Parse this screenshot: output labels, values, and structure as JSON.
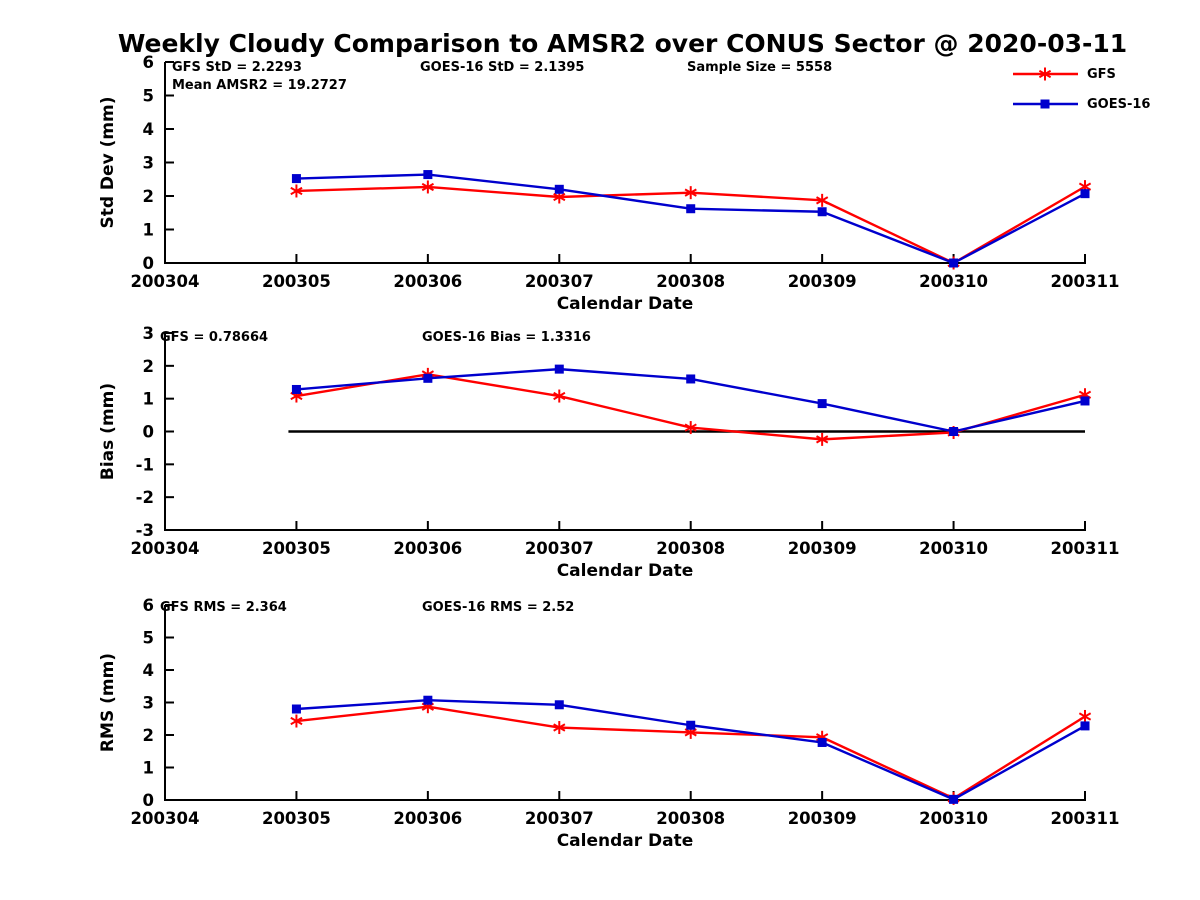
{
  "title": "Weekly Cloudy Comparison to AMSR2 over CONUS Sector @ 2020-03-11",
  "legend": {
    "position": "top-right",
    "entries": [
      {
        "label": "GFS",
        "color": "#ff0000",
        "marker": "asterisk"
      },
      {
        "label": "GOES-16",
        "color": "#0000cd",
        "marker": "square"
      }
    ]
  },
  "chart_data": [
    {
      "name": "std-dev",
      "type": "line",
      "xlabel": "Calendar Date",
      "ylabel": "Std Dev (mm)",
      "ylim": [
        0,
        6
      ],
      "yticks": [
        0,
        1,
        2,
        3,
        4,
        5,
        6
      ],
      "xticklabels": [
        "200304",
        "200305",
        "200306",
        "200307",
        "200308",
        "200309",
        "200310",
        "200311"
      ],
      "x": [
        "200305",
        "200306",
        "200307",
        "200308",
        "200309",
        "200310",
        "200311"
      ],
      "grid": false,
      "annotations": [
        "GFS StD = 2.2293",
        "Mean AMSR2 = 19.2727",
        "GOES-16 StD = 2.1395",
        "Sample Size = 5558"
      ],
      "series": [
        {
          "name": "GFS",
          "color": "#ff0000",
          "marker": "asterisk",
          "values": [
            2.15,
            2.27,
            1.97,
            2.1,
            1.87,
            0.0,
            2.28
          ]
        },
        {
          "name": "GOES-16",
          "color": "#0000cd",
          "marker": "square",
          "values": [
            2.52,
            2.64,
            2.2,
            1.62,
            1.53,
            0.0,
            2.07
          ]
        }
      ]
    },
    {
      "name": "bias",
      "type": "line",
      "xlabel": "Calendar Date",
      "ylabel": "Bias (mm)",
      "ylim": [
        -3,
        3
      ],
      "yticks": [
        -3,
        -2,
        -1,
        0,
        1,
        2,
        3
      ],
      "xticklabels": [
        "200304",
        "200305",
        "200306",
        "200307",
        "200308",
        "200309",
        "200310",
        "200311"
      ],
      "x": [
        "200305",
        "200306",
        "200307",
        "200308",
        "200309",
        "200310",
        "200311"
      ],
      "grid": false,
      "zero_line": true,
      "annotations": [
        "GFS = 0.78664",
        "GOES-16 Bias  = 1.3316"
      ],
      "series": [
        {
          "name": "GFS",
          "color": "#ff0000",
          "marker": "asterisk",
          "values": [
            1.08,
            1.74,
            1.08,
            0.12,
            -0.24,
            -0.03,
            1.12
          ]
        },
        {
          "name": "GOES-16",
          "color": "#0000cd",
          "marker": "square",
          "values": [
            1.28,
            1.62,
            1.9,
            1.6,
            0.85,
            0.0,
            0.93
          ]
        }
      ]
    },
    {
      "name": "rms",
      "type": "line",
      "xlabel": "Calendar Date",
      "ylabel": "RMS (mm)",
      "ylim": [
        0,
        6
      ],
      "yticks": [
        0,
        1,
        2,
        3,
        4,
        5,
        6
      ],
      "xticklabels": [
        "200304",
        "200305",
        "200306",
        "200307",
        "200308",
        "200309",
        "200310",
        "200311"
      ],
      "x": [
        "200305",
        "200306",
        "200307",
        "200308",
        "200309",
        "200310",
        "200311"
      ],
      "grid": false,
      "annotations": [
        "GFS RMS = 2.364",
        "GOES-16 RMS = 2.52"
      ],
      "series": [
        {
          "name": "GFS",
          "color": "#ff0000",
          "marker": "asterisk",
          "values": [
            2.43,
            2.87,
            2.23,
            2.08,
            1.93,
            0.05,
            2.57
          ]
        },
        {
          "name": "GOES-16",
          "color": "#0000cd",
          "marker": "square",
          "values": [
            2.8,
            3.07,
            2.93,
            2.3,
            1.77,
            0.02,
            2.28
          ]
        }
      ]
    }
  ]
}
